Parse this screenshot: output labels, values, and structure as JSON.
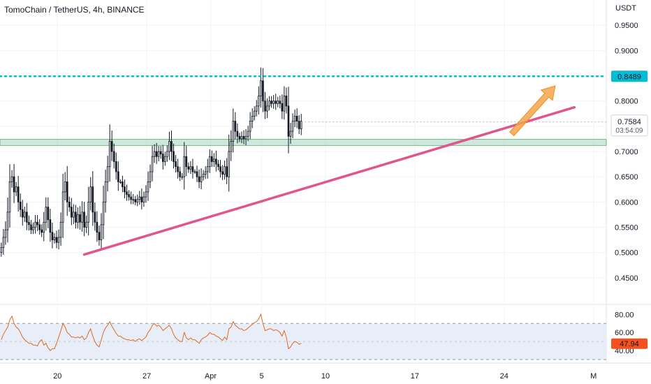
{
  "header": {
    "title": "TomoChain / TetherUS, 4h, BINANCE",
    "currency": "USDT"
  },
  "colors": {
    "up": "#26a69a",
    "down": "#ef5350",
    "candle_body": "#131722",
    "resistance": "#00bcd4",
    "trendline": "#e0558c",
    "support_zone": "#a5d6c4",
    "arrow": "#f5a54a",
    "rsi_line": "#e1691f",
    "rsi_band": "#e8eef8",
    "price_badge": "#ffffff",
    "rsi_badge": "#f4511e"
  },
  "badges": {
    "resistance_value": "0.8489",
    "last_price": "0.7584",
    "countdown": "03:54:09",
    "rsi_value": "47.94"
  },
  "chart_data": [
    {
      "type": "candlestick",
      "title": "TomoChain / TetherUS, 4h, BINANCE",
      "ylabel": "USDT",
      "ylim": [
        0.4,
        1.0
      ],
      "yticks": [
        0.45,
        0.5,
        0.55,
        0.6,
        0.65,
        0.7,
        0.75,
        0.8,
        0.85,
        0.9,
        0.95
      ],
      "ytick_labels": [
        "0.4500",
        "0.5000",
        "0.5500",
        "0.6000",
        "0.6500",
        "0.7000",
        "0.7500",
        "0.8000",
        "0.8500",
        "0.9000",
        "0.9500"
      ],
      "xtick_labels": [
        "20",
        "27",
        "Apr",
        "5",
        "10",
        "17",
        "24",
        "M"
      ],
      "xtick_days": [
        20,
        27,
        32,
        36,
        41,
        48,
        55,
        62
      ],
      "xlim_days": [
        15.5,
        63
      ],
      "grid": true,
      "closes": [
        0.51,
        0.53,
        0.545,
        0.58,
        0.64,
        0.65,
        0.62,
        0.63,
        0.6,
        0.585,
        0.57,
        0.58,
        0.56,
        0.555,
        0.545,
        0.55,
        0.56,
        0.555,
        0.545,
        0.54,
        0.56,
        0.59,
        0.565,
        0.54,
        0.525,
        0.53,
        0.52,
        0.53,
        0.56,
        0.62,
        0.64,
        0.6,
        0.59,
        0.57,
        0.58,
        0.56,
        0.575,
        0.56,
        0.58,
        0.55,
        0.56,
        0.6,
        0.63,
        0.58,
        0.56,
        0.54,
        0.525,
        0.555,
        0.6,
        0.64,
        0.67,
        0.72,
        0.7,
        0.68,
        0.66,
        0.64,
        0.64,
        0.63,
        0.62,
        0.615,
        0.61,
        0.605,
        0.605,
        0.6,
        0.605,
        0.61,
        0.6,
        0.61,
        0.62,
        0.64,
        0.66,
        0.69,
        0.7,
        0.69,
        0.7,
        0.695,
        0.68,
        0.69,
        0.7,
        0.72,
        0.7,
        0.68,
        0.67,
        0.66,
        0.65,
        0.65,
        0.69,
        0.67,
        0.665,
        0.67,
        0.66,
        0.66,
        0.65,
        0.64,
        0.65,
        0.655,
        0.66,
        0.67,
        0.69,
        0.68,
        0.685,
        0.675,
        0.67,
        0.66,
        0.655,
        0.67,
        0.65,
        0.7,
        0.72,
        0.76,
        0.74,
        0.73,
        0.725,
        0.73,
        0.725,
        0.73,
        0.74,
        0.76,
        0.77,
        0.78,
        0.79,
        0.81,
        0.84,
        0.8,
        0.78,
        0.79,
        0.8,
        0.795,
        0.8,
        0.795,
        0.8,
        0.795,
        0.78,
        0.81,
        0.79,
        0.73,
        0.74,
        0.76,
        0.77,
        0.76,
        0.745,
        0.76
      ],
      "markers": {
        "resistance_level": 0.8489,
        "support_zone": [
          0.712,
          0.724
        ],
        "last_price": 0.7584,
        "trendline": [
          {
            "day": 22.1,
            "price": 0.496
          },
          {
            "day": 60.5,
            "price": 0.7875
          }
        ]
      }
    },
    {
      "type": "line",
      "title": "RSI",
      "ylim": [
        30,
        88
      ],
      "yticks": [
        40,
        60,
        80
      ],
      "ytick_labels": [
        "40.00",
        "60.00",
        "80.00"
      ],
      "upper_band": 70,
      "lower_band": 30,
      "last_value": 47.94,
      "values": [
        52,
        58,
        62,
        66,
        74,
        78,
        70,
        66,
        64,
        60,
        55,
        52,
        50,
        48,
        48,
        46,
        46,
        45,
        50,
        52,
        46,
        48,
        43,
        40,
        42,
        42,
        48,
        55,
        62,
        70,
        66,
        60,
        58,
        55,
        55,
        54,
        55,
        54,
        56,
        52,
        54,
        60,
        64,
        56,
        50,
        46,
        44,
        52,
        60,
        65,
        68,
        72,
        67,
        63,
        59,
        56,
        56,
        54,
        53,
        52,
        52,
        51,
        52,
        50,
        52,
        53,
        51,
        53,
        55,
        60,
        63,
        68,
        70,
        67,
        68,
        66,
        62,
        64,
        66,
        68,
        64,
        58,
        54,
        52,
        50,
        50,
        60,
        54,
        52,
        54,
        52,
        52,
        50,
        48,
        52,
        54,
        55,
        57,
        60,
        58,
        58,
        56,
        55,
        53,
        51,
        55,
        52,
        64,
        66,
        72,
        68,
        66,
        64,
        64,
        62,
        63,
        65,
        67,
        69,
        71,
        72,
        75,
        80,
        70,
        62,
        63,
        64,
        64,
        62,
        63,
        62,
        60,
        56,
        62,
        55,
        42,
        44,
        48,
        50,
        49,
        47,
        48
      ]
    }
  ]
}
